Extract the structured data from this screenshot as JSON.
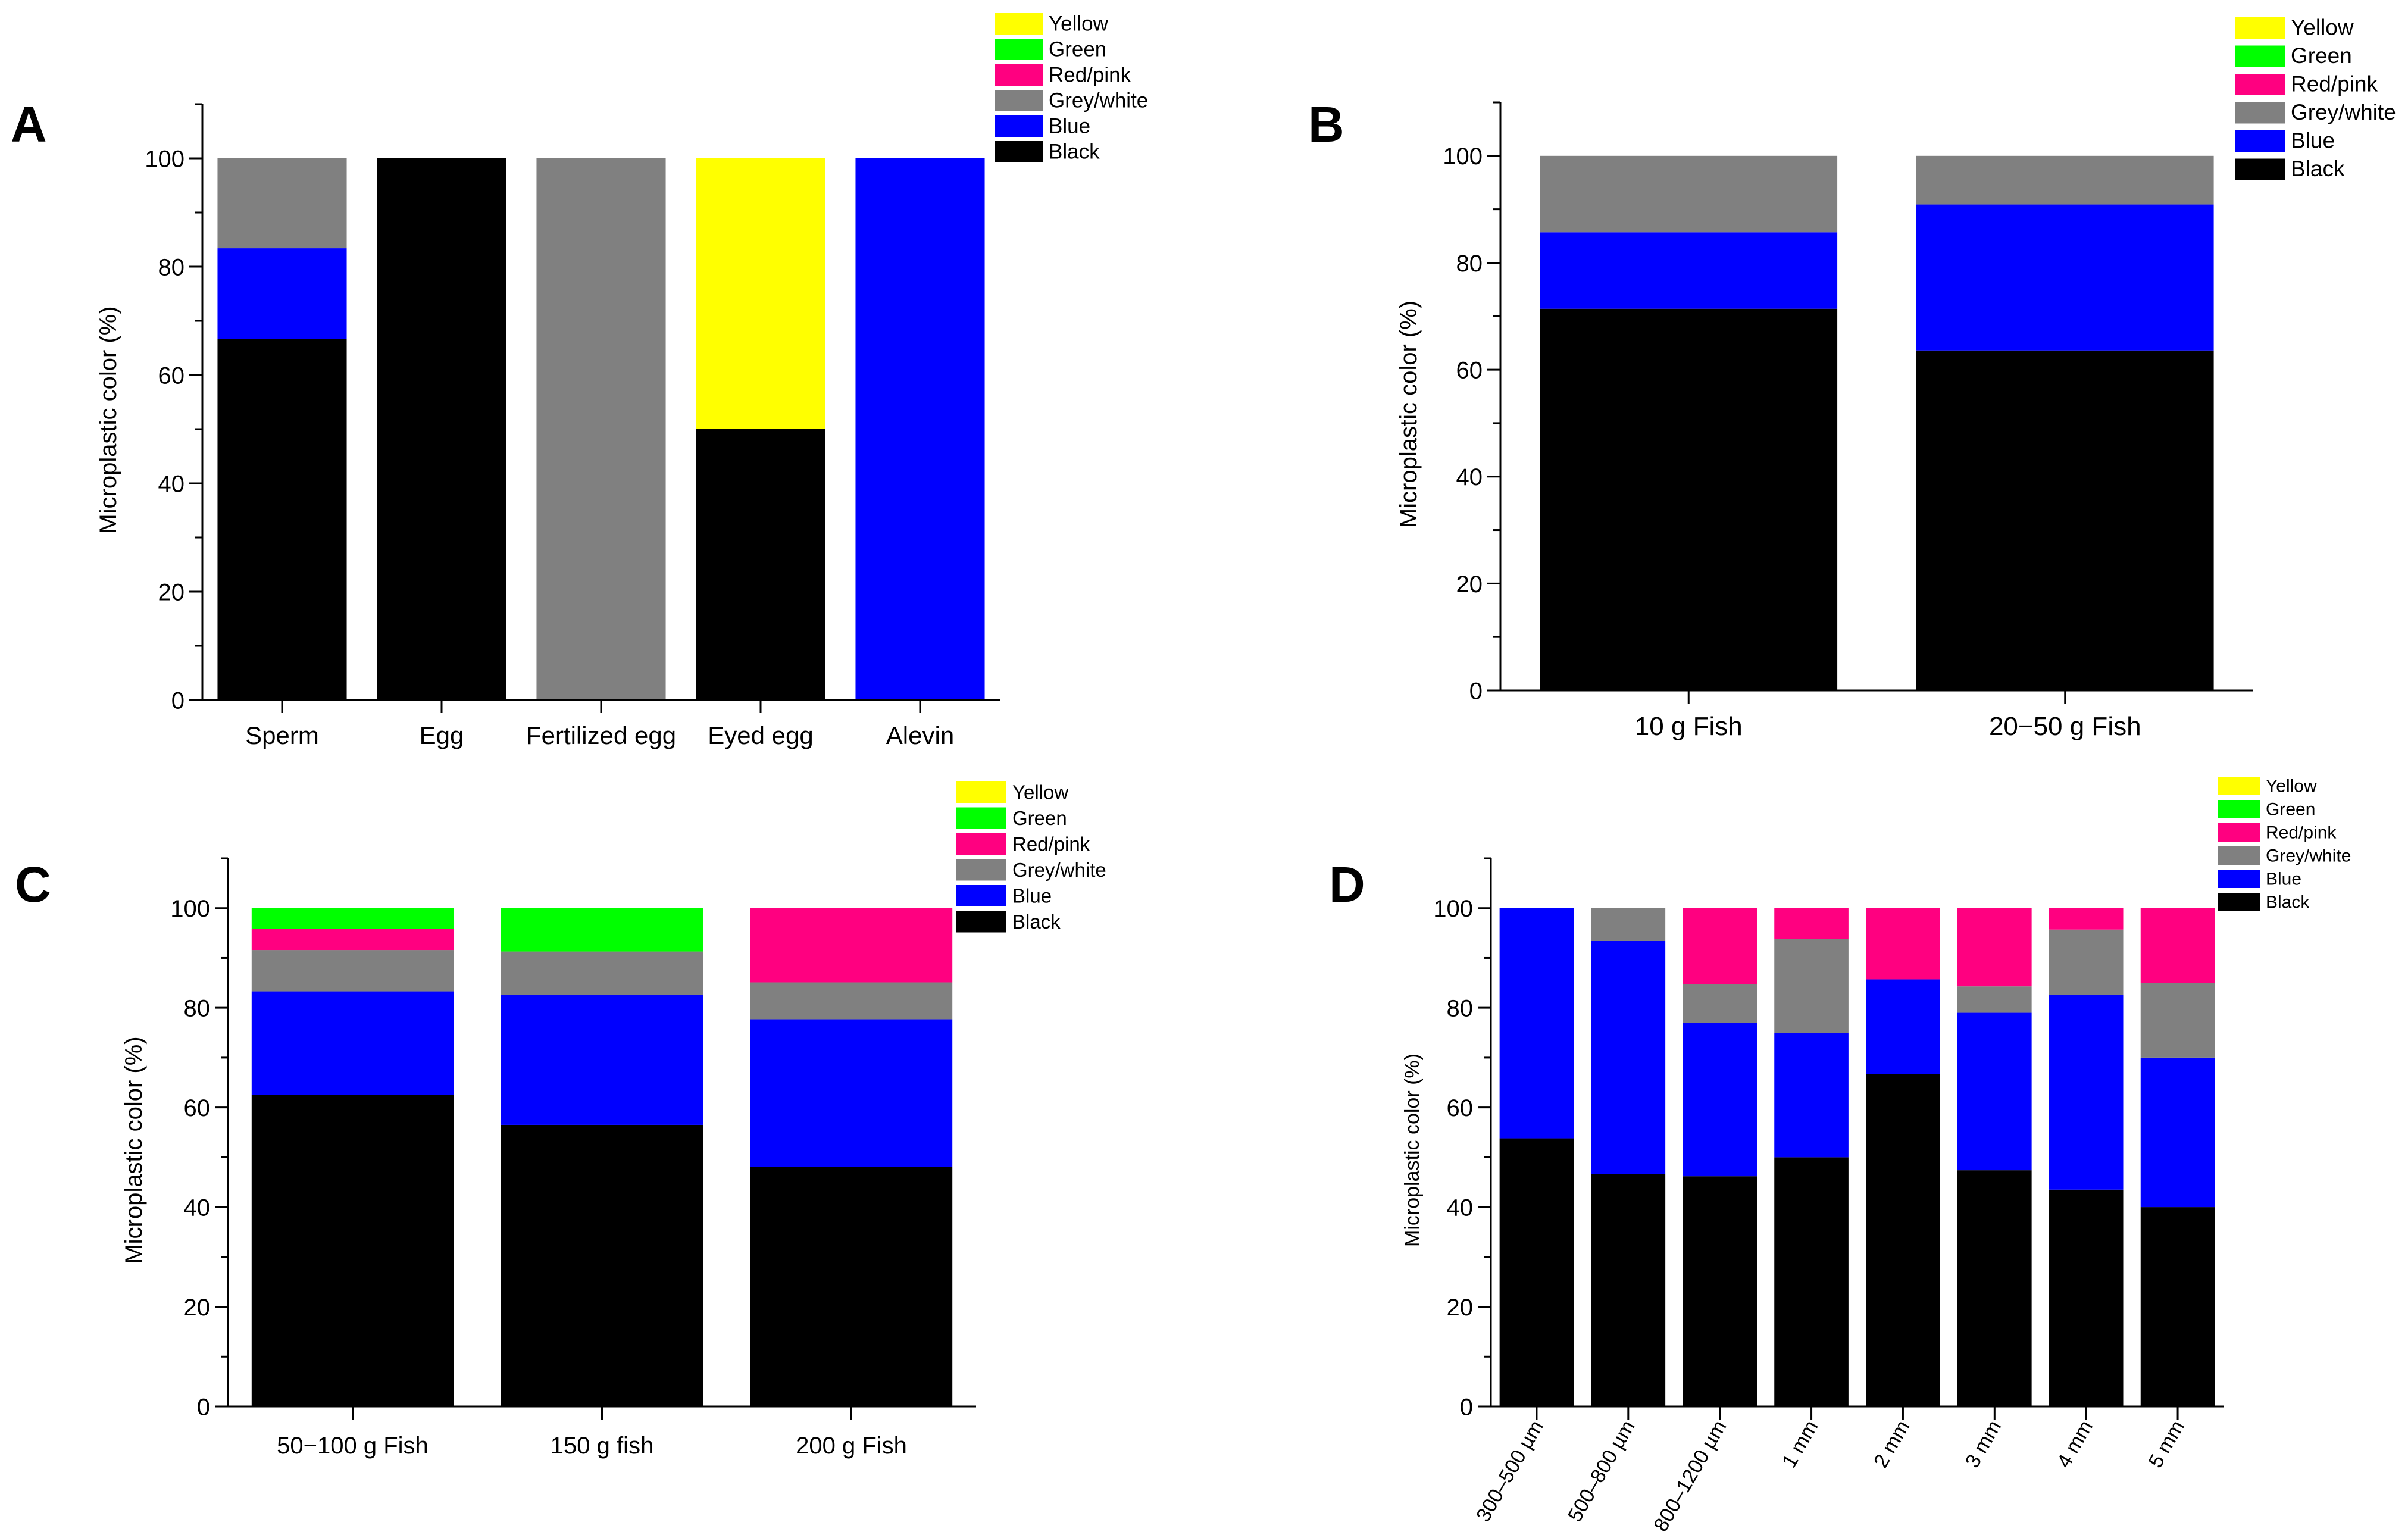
{
  "colors": {
    "Yellow": "#ffff00",
    "Green": "#00ff00",
    "Red/pink": "#ff0080",
    "Grey/white": "#808080",
    "Blue": "#0000ff",
    "Black": "#000000"
  },
  "chart_data": [
    {
      "panel": "A",
      "type": "bar",
      "stacked": true,
      "ylabel": "Microplastic color (%)",
      "ylim": [
        0,
        110
      ],
      "yticks": [
        0,
        20,
        40,
        60,
        80,
        100
      ],
      "categories": [
        "Sperm",
        "Egg",
        "Fertilized egg",
        "Eyed egg",
        "Alevin"
      ],
      "legend": [
        "Yellow",
        "Green",
        "Red/pink",
        "Grey/white",
        "Blue",
        "Black"
      ],
      "series": [
        {
          "name": "Black",
          "values": [
            66.7,
            100,
            0,
            50,
            0
          ]
        },
        {
          "name": "Blue",
          "values": [
            16.7,
            0,
            0,
            0,
            100
          ]
        },
        {
          "name": "Grey/white",
          "values": [
            16.6,
            0,
            100,
            0,
            0
          ]
        },
        {
          "name": "Red/pink",
          "values": [
            0,
            0,
            0,
            0,
            0
          ]
        },
        {
          "name": "Green",
          "values": [
            0,
            0,
            0,
            0,
            0
          ]
        },
        {
          "name": "Yellow",
          "values": [
            0,
            0,
            0,
            50,
            0
          ]
        }
      ]
    },
    {
      "panel": "B",
      "type": "bar",
      "stacked": true,
      "ylabel": "Microplastic color (%)",
      "ylim": [
        0,
        110
      ],
      "yticks": [
        0,
        20,
        40,
        60,
        80,
        100
      ],
      "categories": [
        "10 g Fish",
        "20−50 g Fish"
      ],
      "legend": [
        "Yellow",
        "Green",
        "Red/pink",
        "Grey/white",
        "Blue",
        "Black"
      ],
      "series": [
        {
          "name": "Black",
          "values": [
            71.4,
            63.6
          ]
        },
        {
          "name": "Blue",
          "values": [
            14.3,
            27.3
          ]
        },
        {
          "name": "Grey/white",
          "values": [
            14.3,
            9.1
          ]
        },
        {
          "name": "Red/pink",
          "values": [
            0,
            0
          ]
        },
        {
          "name": "Green",
          "values": [
            0,
            0
          ]
        },
        {
          "name": "Yellow",
          "values": [
            0,
            0
          ]
        }
      ]
    },
    {
      "panel": "C",
      "type": "bar",
      "stacked": true,
      "ylabel": "Microplastic color (%)",
      "ylim": [
        0,
        110
      ],
      "yticks": [
        0,
        20,
        40,
        60,
        80,
        100
      ],
      "categories": [
        "50−100 g Fish",
        "150 g fish",
        "200 g Fish"
      ],
      "legend": [
        "Yellow",
        "Green",
        "Red/pink",
        "Grey/white",
        "Blue",
        "Black"
      ],
      "series": [
        {
          "name": "Black",
          "values": [
            62.5,
            56.5,
            48.1
          ]
        },
        {
          "name": "Blue",
          "values": [
            20.8,
            26.1,
            29.6
          ]
        },
        {
          "name": "Grey/white",
          "values": [
            8.3,
            8.7,
            7.4
          ]
        },
        {
          "name": "Red/pink",
          "values": [
            4.2,
            0,
            14.9
          ]
        },
        {
          "name": "Green",
          "values": [
            4.2,
            8.7,
            0
          ]
        },
        {
          "name": "Yellow",
          "values": [
            0,
            0,
            0
          ]
        }
      ]
    },
    {
      "panel": "D",
      "type": "bar",
      "stacked": true,
      "ylabel": "Microplastic color (%)",
      "ylim": [
        0,
        110
      ],
      "yticks": [
        0,
        20,
        40,
        60,
        80,
        100
      ],
      "categories": [
        "300–500 µm",
        "500–800 µm",
        "800–1200 µm",
        "1 mm",
        "2 mm",
        "3 mm",
        "4 mm",
        "5 mm"
      ],
      "legend": [
        "Yellow",
        "Green",
        "Red/pink",
        "Grey/white",
        "Blue",
        "Black"
      ],
      "series": [
        {
          "name": "Black",
          "values": [
            53.8,
            46.7,
            46.2,
            50,
            66.7,
            47.4,
            43.5,
            40
          ]
        },
        {
          "name": "Blue",
          "values": [
            46.2,
            46.7,
            30.8,
            25,
            19,
            31.6,
            39.1,
            30
          ]
        },
        {
          "name": "Grey/white",
          "values": [
            0,
            6.6,
            7.7,
            18.8,
            0,
            5.3,
            13.1,
            15
          ]
        },
        {
          "name": "Red/pink",
          "values": [
            0,
            0,
            15.3,
            6.2,
            14.3,
            15.7,
            4.3,
            15
          ]
        },
        {
          "name": "Green",
          "values": [
            0,
            0,
            0,
            0,
            0,
            0,
            0,
            0
          ]
        },
        {
          "name": "Yellow",
          "values": [
            0,
            0,
            0,
            0,
            0,
            0,
            0,
            0
          ]
        }
      ]
    }
  ]
}
